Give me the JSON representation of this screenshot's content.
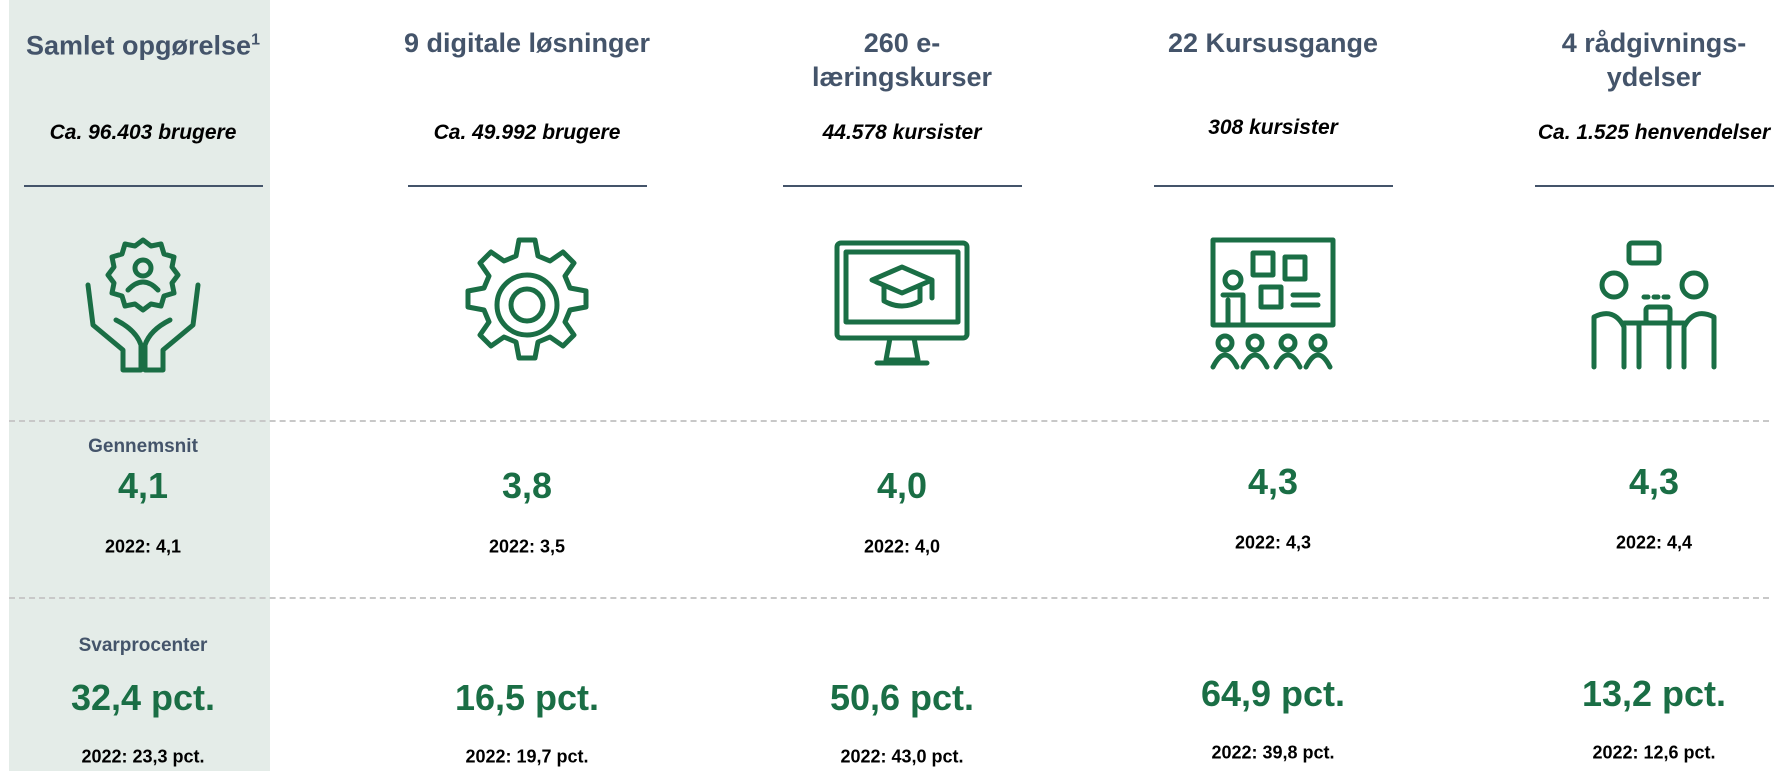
{
  "row_labels": {
    "average": "Gennemsnit",
    "response_rate": "Svarprocenter"
  },
  "columns": [
    {
      "title_lines": [
        "Samlet opgørelse"
      ],
      "title_note": "1",
      "subtitle": "Ca. 96.403 brugere",
      "average": "4,1",
      "average_prev": "2022: 4,1",
      "response_rate": "32,4 pct.",
      "response_rate_prev": "2022: 23,3 pct."
    },
    {
      "title_lines": [
        "9 digitale løsninger"
      ],
      "subtitle": "Ca. 49.992 brugere",
      "average": "3,8",
      "average_prev": "2022: 3,5",
      "response_rate": "16,5 pct.",
      "response_rate_prev": "2022: 19,7 pct."
    },
    {
      "title_lines": [
        "260 e-",
        "læringskurser"
      ],
      "subtitle": "44.578 kursister",
      "average": "4,0",
      "average_prev": "2022: 4,0",
      "response_rate": "50,6 pct.",
      "response_rate_prev": "2022: 43,0 pct."
    },
    {
      "title_lines": [
        "22 Kursusgange"
      ],
      "subtitle": "308 kursister",
      "average": "4,3",
      "average_prev": "2022: 4,3",
      "response_rate": "64,9 pct.",
      "response_rate_prev": "2022: 39,8 pct."
    },
    {
      "title_lines": [
        "4 rådgivnings-",
        "ydelser"
      ],
      "subtitle": "Ca. 1.525 henvendelser",
      "average": "4,3",
      "average_prev": "2022: 4,4",
      "response_rate": "13,2 pct.",
      "response_rate_prev": "2022: 12,6 pct."
    }
  ]
}
